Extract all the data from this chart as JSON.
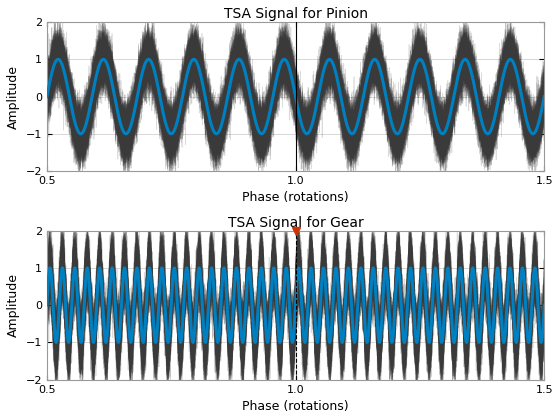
{
  "title1": "TSA Signal for Pinion",
  "title2": "TSA Signal for Gear",
  "xlabel": "Phase (rotations)",
  "ylabel": "Amplitude",
  "xlim": [
    0.5,
    1.5
  ],
  "ylim": [
    -2,
    2
  ],
  "x_ticks": [
    0.5,
    1.0,
    1.5
  ],
  "y_ticks": [
    -2,
    -1,
    0,
    1,
    2
  ],
  "pinion_freq": 11,
  "pinion_noise_scale": 0.35,
  "pinion_amplitude": 1.0,
  "gear_freq": 40,
  "gear_noise_scale": 0.45,
  "gear_amplitude": 1.0,
  "signal_color": "#0080C0",
  "noise_color": "#3a3a3a",
  "vline_color": "#000000",
  "marker_color": "#CC3300",
  "background_color": "#ffffff",
  "grid_color": "#c8c8c8",
  "signal_linewidth": 2.2,
  "noise_linewidth": 0.5,
  "noise_alpha": 0.18,
  "n_points": 3000,
  "n_noise_pinion": 80,
  "n_noise_gear": 80
}
